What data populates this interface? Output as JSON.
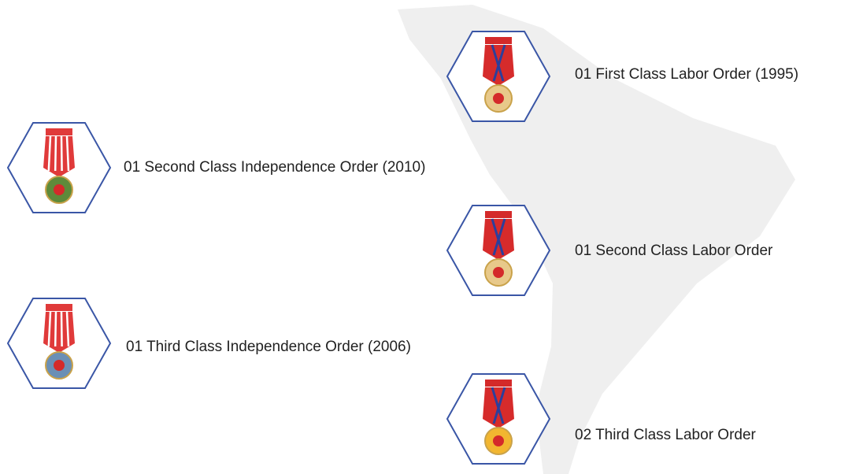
{
  "awards": [
    {
      "label": "01 First Class Labor Order (1995)"
    },
    {
      "label": "01 Second Class Independence Order (2010)"
    },
    {
      "label": "01 Second Class Labor Order"
    },
    {
      "label": "01 Third Class Independence Order (2006)"
    },
    {
      "label": "02 Third Class Labor Order"
    }
  ]
}
